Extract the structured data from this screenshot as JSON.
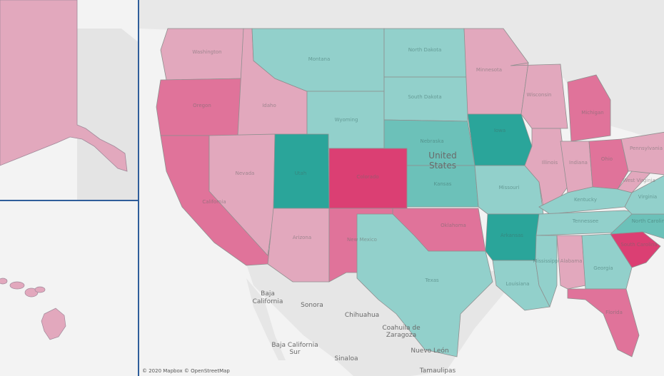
{
  "colors": {
    "light_pink": "#e2a8bd",
    "medium_pink": "#e0739a",
    "deep_pink": "#db3f73",
    "light_teal": "#92d0cb",
    "medium_teal": "#6cc1b9",
    "deep_teal": "#2aa59a",
    "land": "#e5e5e5",
    "water": "#f3f3f3",
    "frame": "#2f5d9a"
  },
  "country_label": [
    "United",
    "States"
  ],
  "mexico_labels": [
    "Baja",
    "California",
    "Sonora",
    "Chihuahua",
    "Coahuila de",
    "Zaragoza",
    "Baja California",
    "Sur",
    "Sinaloa",
    "Nuevo León",
    "Tamaulipas"
  ],
  "attribution": "© 2020 Mapbox © OpenStreetMap",
  "states": [
    {
      "name": "Washington",
      "class": "light_pink"
    },
    {
      "name": "Oregon",
      "class": "medium_pink"
    },
    {
      "name": "California",
      "class": "medium_pink"
    },
    {
      "name": "Idaho",
      "class": "light_pink"
    },
    {
      "name": "Nevada",
      "class": "light_pink"
    },
    {
      "name": "Montana",
      "class": "light_teal"
    },
    {
      "name": "Wyoming",
      "class": "light_teal"
    },
    {
      "name": "Utah",
      "class": "deep_teal"
    },
    {
      "name": "Colorado",
      "class": "deep_pink"
    },
    {
      "name": "Arizona",
      "class": "light_pink"
    },
    {
      "name": "New Mexico",
      "class": "medium_pink"
    },
    {
      "name": "North Dakota",
      "class": "light_teal"
    },
    {
      "name": "South Dakota",
      "class": "light_teal"
    },
    {
      "name": "Nebraska",
      "class": "medium_teal"
    },
    {
      "name": "Kansas",
      "class": "medium_teal"
    },
    {
      "name": "Oklahoma",
      "class": "medium_pink"
    },
    {
      "name": "Texas",
      "class": "light_teal"
    },
    {
      "name": "Minnesota",
      "class": "light_pink"
    },
    {
      "name": "Iowa",
      "class": "deep_teal"
    },
    {
      "name": "Missouri",
      "class": "light_teal"
    },
    {
      "name": "Arkansas",
      "class": "deep_teal"
    },
    {
      "name": "Louisiana",
      "class": "light_teal"
    },
    {
      "name": "Wisconsin",
      "class": "light_pink"
    },
    {
      "name": "Illinois",
      "class": "light_pink"
    },
    {
      "name": "Michigan",
      "class": "medium_pink"
    },
    {
      "name": "Indiana",
      "class": "light_pink"
    },
    {
      "name": "Ohio",
      "class": "medium_pink"
    },
    {
      "name": "Kentucky",
      "class": "light_teal"
    },
    {
      "name": "Tennessee",
      "class": "light_teal"
    },
    {
      "name": "Mississippi",
      "class": "light_teal"
    },
    {
      "name": "Alabama",
      "class": "light_pink"
    },
    {
      "name": "Georgia",
      "class": "light_teal"
    },
    {
      "name": "Florida",
      "class": "medium_pink"
    },
    {
      "name": "South Carolina",
      "class": "deep_pink"
    },
    {
      "name": "North Carolina",
      "class": "medium_teal"
    },
    {
      "name": "Virginia",
      "class": "light_teal"
    },
    {
      "name": "West Virginia",
      "class": "light_pink"
    },
    {
      "name": "Pennsylvania",
      "class": "light_pink"
    },
    {
      "name": "Alaska",
      "class": "light_pink"
    },
    {
      "name": "Hawaii",
      "class": "light_pink"
    }
  ]
}
